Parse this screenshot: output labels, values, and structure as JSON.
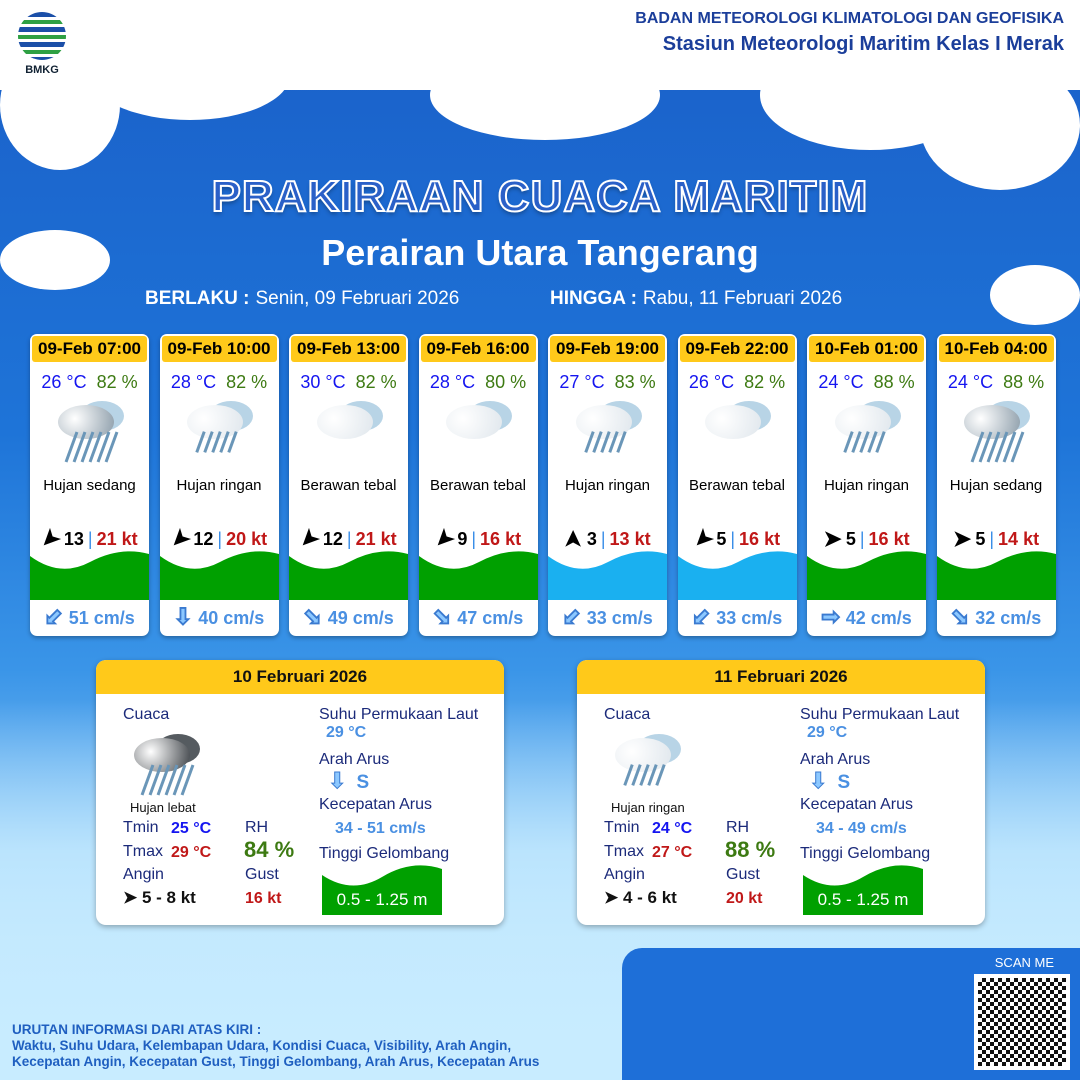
{
  "header": {
    "logo_text": "BMKG",
    "agency": "BADAN METEOROLOGI KLIMATOLOGI DAN GEOFISIKA",
    "station": "Stasiun Meteorologi Maritim Kelas I Merak"
  },
  "title": "PRAKIRAAN CUACA MARITIM",
  "subtitle": "Perairan Utara Tangerang",
  "validity": {
    "from_label": "BERLAKU :",
    "from": "Senin, 09 Februari 2026",
    "to_label": "HINGGA :",
    "to": "Rabu, 11 Februari 2026"
  },
  "colors": {
    "header_yellow": "#ffc91a",
    "wave_green": "#00a000",
    "wave_blue": "#1ab0f0",
    "temp": "#1515f0",
    "rh": "#3d7a12",
    "gust": "#c01818"
  },
  "forecasts": [
    {
      "time": "09-Feb 07:00",
      "temp": "26 °C",
      "rh": "82 %",
      "cond": "Hujan sedang",
      "icon": "moderate-rain",
      "wind_dir_deg": 225,
      "wind": "13",
      "gust": "21 kt",
      "wave": "0.5 - 1.25 m",
      "wave_color": "#00a000",
      "current_icon": "arrow-down-left",
      "current": "51 cm/s"
    },
    {
      "time": "09-Feb 10:00",
      "temp": "28 °C",
      "rh": "82 %",
      "cond": "Hujan ringan",
      "icon": "light-rain",
      "wind_dir_deg": 225,
      "wind": "12",
      "gust": "20 kt",
      "wave": "0.5 - 1.25 m",
      "wave_color": "#00a000",
      "current_icon": "arrow-down",
      "current": "40 cm/s"
    },
    {
      "time": "09-Feb 13:00",
      "temp": "30 °C",
      "rh": "82 %",
      "cond": "Berawan tebal",
      "icon": "cloudy",
      "wind_dir_deg": 225,
      "wind": "12",
      "gust": "21 kt",
      "wave": "0.5 - 1.25 m",
      "wave_color": "#00a000",
      "current_icon": "arrow-down-right",
      "current": "49 cm/s"
    },
    {
      "time": "09-Feb 16:00",
      "temp": "28 °C",
      "rh": "80 %",
      "cond": "Berawan tebal",
      "icon": "cloudy",
      "wind_dir_deg": 225,
      "wind": "9",
      "gust": "16 kt",
      "wave": "0.5 - 1.25 m",
      "wave_color": "#00a000",
      "current_icon": "arrow-down-right",
      "current": "47 cm/s"
    },
    {
      "time": "09-Feb 19:00",
      "temp": "27 °C",
      "rh": "83 %",
      "cond": "Hujan ringan",
      "icon": "light-rain",
      "wind_dir_deg": 90,
      "wind": "3",
      "gust": "13 kt",
      "wave": "0.1 - 0.5 m",
      "wave_color": "#1ab0f0",
      "current_icon": "arrow-down-left",
      "current": "33 cm/s"
    },
    {
      "time": "09-Feb 22:00",
      "temp": "26 °C",
      "rh": "82 %",
      "cond": "Berawan tebal",
      "icon": "cloudy",
      "wind_dir_deg": 225,
      "wind": "5",
      "gust": "16 kt",
      "wave": "0.1 - 0.5 m",
      "wave_color": "#1ab0f0",
      "current_icon": "arrow-down-left",
      "current": "33 cm/s"
    },
    {
      "time": "10-Feb 01:00",
      "temp": "24 °C",
      "rh": "88 %",
      "cond": "Hujan ringan",
      "icon": "light-rain",
      "wind_dir_deg": 0,
      "wind": "5",
      "gust": "16 kt",
      "wave": "0.5 - 1.25 m",
      "wave_color": "#00a000",
      "current_icon": "arrow-right",
      "current": "42 cm/s"
    },
    {
      "time": "10-Feb 04:00",
      "temp": "24 °C",
      "rh": "88 %",
      "cond": "Hujan sedang",
      "icon": "moderate-rain",
      "wind_dir_deg": 0,
      "wind": "5",
      "gust": "14 kt",
      "wave": "0.5 - 1.25 m",
      "wave_color": "#00a000",
      "current_icon": "arrow-down-right",
      "current": "32 cm/s"
    }
  ],
  "labels": {
    "weather": "Cuaca",
    "tmin": "Tmin",
    "tmax": "Tmax",
    "wind": "Angin",
    "rh": "RH",
    "gust": "Gust",
    "sst": "Suhu Permukaan Laut",
    "current_dir": "Arah Arus",
    "current_speed": "Kecepatan Arus",
    "wave": "Tinggi Gelombang"
  },
  "daily": [
    {
      "date": "10 Februari 2026",
      "cond": "Hujan lebat",
      "icon": "heavy-rain",
      "tmin": "25 °C",
      "tmax": "29 °C",
      "rh": "84 %",
      "wind": "5  - 8 kt",
      "gust": "16 kt",
      "sst": "29 °C",
      "current_dir": "S",
      "current_speed": "34  - 51 cm/s",
      "wave": "0.5 - 1.25 m"
    },
    {
      "date": "11 Februari 2026",
      "cond": "Hujan ringan",
      "icon": "light-rain",
      "tmin": "24 °C",
      "tmax": "27 °C",
      "rh": "88 %",
      "wind": "4  - 6 kt",
      "gust": "20 kt",
      "sst": "29 °C",
      "current_dir": "S",
      "current_speed": "34  - 49 cm/s",
      "wave": "0.5 - 1.25 m"
    }
  ],
  "scan_label": "SCAN ME",
  "footer": {
    "heading": "URUTAN INFORMASI DARI ATAS KIRI :",
    "line1": "Waktu, Suhu Udara, Kelembapan Udara, Kondisi Cuaca, Visibility, Arah Angin,",
    "line2": "Kecepatan Angin, Kecepatan Gust, Tinggi Gelombang, Arah Arus, Kecepatan Arus"
  }
}
